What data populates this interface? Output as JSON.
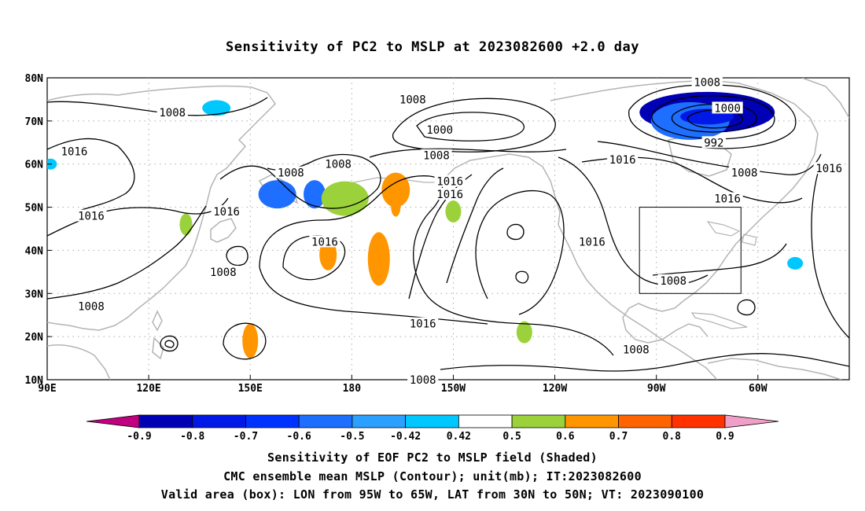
{
  "title": "Sensitivity of PC2 to MSLP at 2023082600 +2.0 day",
  "axes": {
    "lon_ticks": [
      "90E",
      "120E",
      "150E",
      "180",
      "150W",
      "120W",
      "90W",
      "60W"
    ],
    "lat_ticks": [
      "80N",
      "70N",
      "60N",
      "50N",
      "40N",
      "30N",
      "20N",
      "10N"
    ],
    "lon_range": [
      90,
      327
    ],
    "lat_range": [
      10,
      80
    ]
  },
  "contours": {
    "levels_shown": [
      "992",
      "1000",
      "1008",
      "1016"
    ],
    "color": "#000000",
    "labels": [
      {
        "text": "1008",
        "lon": 127,
        "lat": 72
      },
      {
        "text": "1016",
        "lon": 98,
        "lat": 63
      },
      {
        "text": "1016",
        "lon": 103,
        "lat": 48
      },
      {
        "text": "1008",
        "lon": 103,
        "lat": 27
      },
      {
        "text": "1016",
        "lon": 143,
        "lat": 49
      },
      {
        "text": "1008",
        "lon": 142,
        "lat": 35
      },
      {
        "text": "1008",
        "lon": 162,
        "lat": 58
      },
      {
        "text": "1008",
        "lon": 176,
        "lat": 60
      },
      {
        "text": "1016",
        "lon": 172,
        "lat": 42
      },
      {
        "text": "1008",
        "lon": 198,
        "lat": 75
      },
      {
        "text": "1000",
        "lon": 206,
        "lat": 68
      },
      {
        "text": "1008",
        "lon": 205,
        "lat": 62
      },
      {
        "text": "1016",
        "lon": 209,
        "lat": 56
      },
      {
        "text": "1016",
        "lon": 209,
        "lat": 53
      },
      {
        "text": "1016",
        "lon": 201,
        "lat": 23
      },
      {
        "text": "1008",
        "lon": 201,
        "lat": 10
      },
      {
        "text": "1016",
        "lon": 251,
        "lat": 42
      },
      {
        "text": "1016",
        "lon": 260,
        "lat": 61
      },
      {
        "text": "1008",
        "lon": 285,
        "lat": 79
      },
      {
        "text": "1000",
        "lon": 291,
        "lat": 73
      },
      {
        "text": "992",
        "lon": 287,
        "lat": 65
      },
      {
        "text": "1008",
        "lon": 296,
        "lat": 58
      },
      {
        "text": "1016",
        "lon": 291,
        "lat": 52
      },
      {
        "text": "1008",
        "lon": 275,
        "lat": 33
      },
      {
        "text": "1008",
        "lon": 264,
        "lat": 17
      },
      {
        "text": "1016",
        "lon": 321,
        "lat": 59
      }
    ]
  },
  "shading": {
    "negative_regions": [
      {
        "lon": 140,
        "lat": 73,
        "value": -0.5
      },
      {
        "lon": 91,
        "lat": 60,
        "value": -0.5
      },
      {
        "lon": 158,
        "lat": 53,
        "value": -0.6
      },
      {
        "lon": 169,
        "lat": 53,
        "value": -0.6
      },
      {
        "lon": 285,
        "lat": 72,
        "value": -0.8
      },
      {
        "lon": 280,
        "lat": 70,
        "value": -0.6
      },
      {
        "lon": 311,
        "lat": 37,
        "value": -0.5
      }
    ],
    "positive_regions": [
      {
        "lon": 178,
        "lat": 52,
        "value": 0.5
      },
      {
        "lon": 193,
        "lat": 54,
        "value": 0.6
      },
      {
        "lon": 188,
        "lat": 38,
        "value": 0.6
      },
      {
        "lon": 173,
        "lat": 39,
        "value": 0.6
      },
      {
        "lon": 150,
        "lat": 19,
        "value": 0.6
      },
      {
        "lon": 231,
        "lat": 21,
        "value": 0.5
      },
      {
        "lon": 131,
        "lat": 46,
        "value": 0.5
      },
      {
        "lon": 210,
        "lat": 49,
        "value": 0.5
      }
    ]
  },
  "valid_box": {
    "lon_west": 265,
    "lon_east": 295,
    "lat_south": 30,
    "lat_north": 50
  },
  "colorbar": {
    "labels": [
      "-0.9",
      "-0.8",
      "-0.7",
      "-0.6",
      "-0.5",
      "-0.42",
      "0.42",
      "0.5",
      "0.6",
      "0.7",
      "0.8",
      "0.9"
    ],
    "colors": [
      "#c00080",
      "#0000b4",
      "#0019e6",
      "#0032ff",
      "#1e6eff",
      "#2ba0ff",
      "#00c8ff",
      "#ffffff",
      "#9bd23c",
      "#ff9600",
      "#ff6400",
      "#ff3200",
      "#ff0000",
      "#f0a0c8"
    ]
  },
  "footer": {
    "line1": "Sensitivity of EOF PC2 to MSLP field (Shaded)",
    "line2": "CMC ensemble mean MSLP (Contour); unit(mb); IT:2023082600",
    "line3": "Valid area (box): LON from 95W to 65W, LAT from 30N to 50N; VT: 2023090100"
  }
}
